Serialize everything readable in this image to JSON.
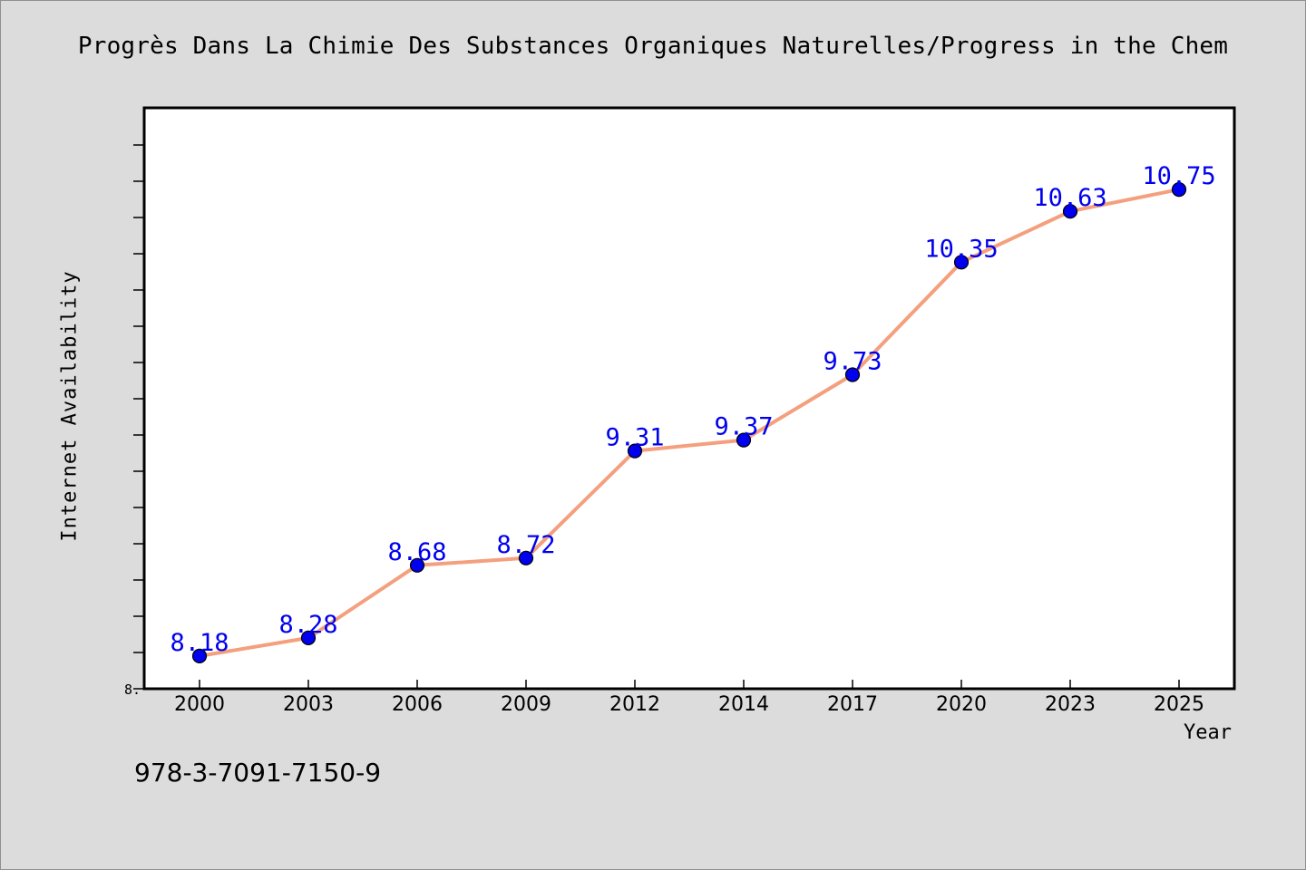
{
  "chart_data": {
    "type": "line",
    "title": "Progrès Dans La Chimie Des Substances Organiques Naturelles/Progress in the Chem",
    "xlabel": "Year",
    "ylabel": "Internet Availability",
    "categories": [
      "2000",
      "2003",
      "2006",
      "2009",
      "2012",
      "2014",
      "2017",
      "2020",
      "2023",
      "2025"
    ],
    "series": [
      {
        "values": [
          8.18,
          8.28,
          8.68,
          8.72,
          9.31,
          9.37,
          9.73,
          10.35,
          10.63,
          10.75
        ]
      }
    ],
    "ylim": [
      8.0,
      11.2
    ],
    "y_tick_label": "8.",
    "grid": false,
    "legend": "none",
    "line_color": "#f4a07e",
    "marker_color": "#0000ee",
    "label_color": "#0000ee"
  },
  "footer": {
    "isbn": "978-3-7091-7150-9"
  }
}
